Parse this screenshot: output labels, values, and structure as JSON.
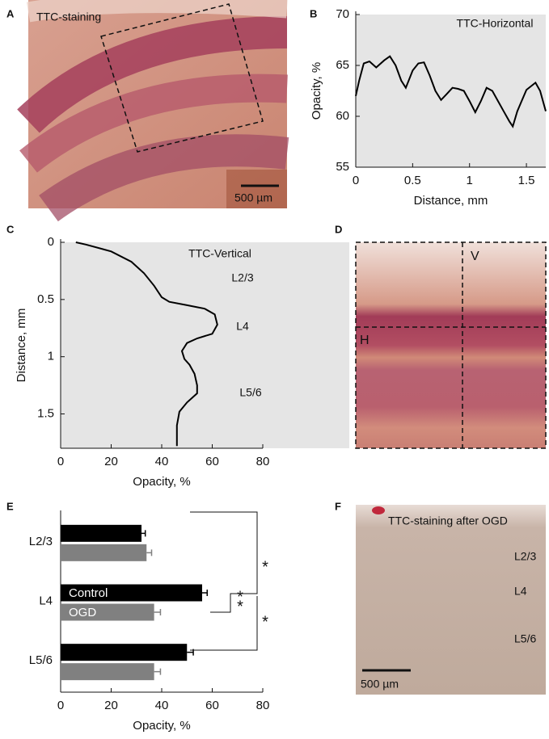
{
  "images": {
    "A": {
      "label": "A",
      "text": "TTC-staining",
      "scale": "500 µm"
    },
    "D": {
      "label": "D",
      "vertical": "V",
      "horizontal": "H"
    },
    "F": {
      "label": "F",
      "text": "TTC-staining after OGD",
      "layers": [
        "L2/3",
        "L4",
        "L5/6"
      ],
      "scale": "500 µm"
    }
  },
  "chart_data": [
    {
      "type": "line",
      "label": "B",
      "annotations": [
        "TTC-Horizontal"
      ],
      "xlabel": "Distance, mm",
      "ylabel": "Opacity, %",
      "x": [
        0,
        0.03,
        0.07,
        0.12,
        0.18,
        0.25,
        0.3,
        0.35,
        0.4,
        0.44,
        0.5,
        0.55,
        0.6,
        0.65,
        0.7,
        0.75,
        0.8,
        0.85,
        0.9,
        0.95,
        1.0,
        1.05,
        1.1,
        1.15,
        1.2,
        1.25,
        1.3,
        1.35,
        1.38,
        1.42,
        1.5,
        1.58,
        1.62,
        1.67
      ],
      "series": [
        {
          "color": "#000000",
          "values": [
            62,
            63.5,
            65.2,
            65.4,
            64.8,
            65.5,
            65.9,
            65,
            63.5,
            62.8,
            64.5,
            65.2,
            65.3,
            64,
            62.5,
            61.6,
            62.2,
            62.8,
            62.7,
            62.5,
            61.5,
            60.4,
            61.5,
            62.8,
            62.5,
            61.5,
            60.5,
            59.5,
            59,
            60.5,
            62.6,
            63.3,
            62.5,
            60.5
          ]
        }
      ],
      "xlim": [
        0,
        1.67
      ],
      "xticks": [
        0,
        0.5,
        1,
        1.5
      ],
      "ylim": [
        55,
        70
      ],
      "yticks": [
        55,
        60,
        65,
        70
      ],
      "background": "#e5e5e5"
    },
    {
      "type": "line",
      "label": "C",
      "annotations": [
        "TTC-Vertical",
        "L2/3",
        "L4",
        "L5/6"
      ],
      "xlabel": "Opacity, %",
      "ylabel": "Distance, mm",
      "y_inverted": true,
      "y": [
        0,
        0.02,
        0.08,
        0.17,
        0.27,
        0.38,
        0.48,
        0.52,
        0.55,
        0.58,
        0.63,
        0.72,
        0.8,
        0.84,
        0.88,
        0.95,
        1.02,
        1.07,
        1.15,
        1.25,
        1.32,
        1.4,
        1.48,
        1.6,
        1.7,
        1.78
      ],
      "series": [
        {
          "color": "#000000",
          "values": [
            6,
            10,
            20,
            28,
            33,
            37,
            40,
            43,
            50,
            57,
            61,
            62,
            60,
            54,
            50,
            48,
            49,
            51,
            53,
            54,
            54,
            50,
            47,
            46,
            46,
            46
          ]
        }
      ],
      "xlim": [
        0,
        80
      ],
      "xticks": [
        0,
        20,
        40,
        60,
        80
      ],
      "ylim": [
        0,
        1.8
      ],
      "yticks": [
        0,
        0.5,
        1,
        1.5
      ],
      "background": "#e5e5e5"
    },
    {
      "type": "bar",
      "label": "E",
      "orientation": "horizontal",
      "annotations": [
        "*",
        "*",
        "*",
        "*"
      ],
      "xlabel": "Opacity, %",
      "categories": [
        "L2/3",
        "L4",
        "L5/6"
      ],
      "series": [
        {
          "name": "Control",
          "color": "#000000",
          "values": [
            32,
            56,
            50
          ],
          "errors": [
            1.5,
            2,
            2.5
          ]
        },
        {
          "name": "OGD",
          "color": "#808080",
          "values": [
            34,
            37,
            37
          ],
          "errors": [
            2,
            2.5,
            2.5
          ]
        }
      ],
      "xlim": [
        0,
        80
      ],
      "xticks": [
        0,
        20,
        40,
        60,
        80
      ]
    }
  ]
}
